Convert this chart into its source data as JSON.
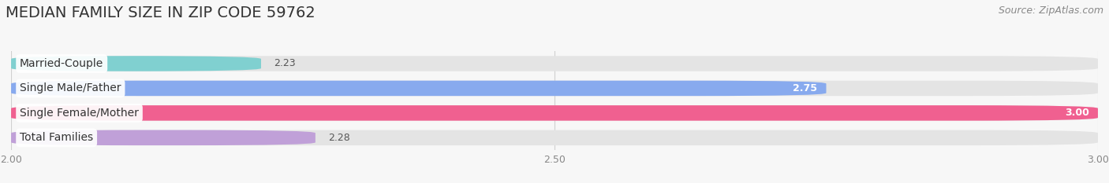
{
  "title": "MEDIAN FAMILY SIZE IN ZIP CODE 59762",
  "source": "Source: ZipAtlas.com",
  "categories": [
    "Married-Couple",
    "Single Male/Father",
    "Single Female/Mother",
    "Total Families"
  ],
  "values": [
    2.23,
    2.75,
    3.0,
    2.28
  ],
  "bar_colors": [
    "#80d0d0",
    "#88aaee",
    "#f06090",
    "#c0a0d8"
  ],
  "bar_label_colors": [
    "#555555",
    "#ffffff",
    "#ffffff",
    "#555555"
  ],
  "xlim_min": 2.0,
  "xlim_max": 3.0,
  "xticks": [
    2.0,
    2.5,
    3.0
  ],
  "xtick_labels": [
    "2.00",
    "2.50",
    "3.00"
  ],
  "background_color": "#f7f7f7",
  "bar_bg_color": "#e4e4e4",
  "title_fontsize": 14,
  "source_fontsize": 9,
  "label_fontsize": 10,
  "value_fontsize": 9,
  "tick_fontsize": 9
}
